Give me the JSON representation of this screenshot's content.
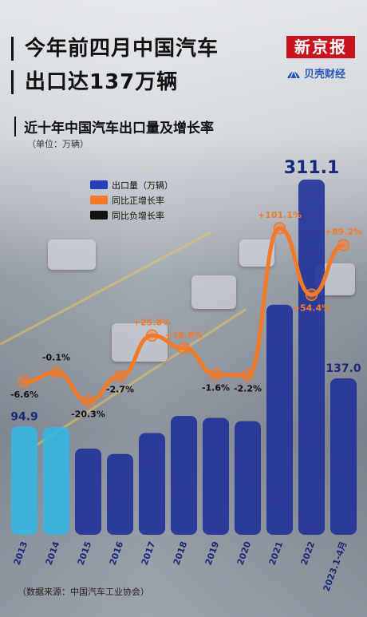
{
  "headline": {
    "line1": "今年前四月中国汽车",
    "line2": "出口达137万辆"
  },
  "brand": {
    "name": "新京报",
    "sub": "贝壳财经",
    "sub_icon": "shell-icon",
    "color": "#c8141e"
  },
  "chart_data": {
    "type": "bar",
    "title": "近十年中国汽车出口量及增长率",
    "unit": "（单位：万辆）",
    "categories": [
      "2013",
      "2014",
      "2015",
      "2016",
      "2017",
      "2018",
      "2019",
      "2020",
      "2021",
      "2022",
      "2023.1-4月"
    ],
    "series": [
      {
        "name": "出口量（万辆）",
        "type": "bar",
        "values": [
          94.9,
          94.3,
          75.5,
          70.8,
          89.1,
          104.1,
          102.4,
          99.5,
          201.5,
          311.1,
          137.0
        ]
      },
      {
        "name": "同比增长率",
        "type": "line",
        "values": [
          -6.6,
          -0.1,
          -20.3,
          -2.7,
          25.8,
          16.8,
          -1.6,
          -2.2,
          101.1,
          54.4,
          89.2
        ]
      }
    ],
    "bar_value_labels": {
      "0": "94.9",
      "9": "311.1",
      "10": "137.0"
    },
    "rate_labels": [
      "-6.6%",
      "-0.1%",
      "-20.3%",
      "-2.7%",
      "+25.8%",
      "+16.8%",
      "-1.6%",
      "-2.2%",
      "+101.1%",
      "+54.4%",
      "+89.2%"
    ],
    "legend": [
      {
        "label": "出口量（万辆）",
        "color": "#2540b8"
      },
      {
        "label": "同比正增长率",
        "color": "#f47a28"
      },
      {
        "label": "同比负增长率",
        "color": "#111111"
      }
    ],
    "colors": {
      "bar": "#1e2f9a",
      "bar_highlight": "#2fb8e8",
      "line": "#f47a28",
      "neg_label": "#111111",
      "pos_label": "#f47a28"
    },
    "ylim_bar": [
      0,
      320
    ],
    "ylim_rate": [
      -30,
      110
    ],
    "legend_position": "top-left"
  },
  "source": "（数据来源：中国汽车工业协会）"
}
